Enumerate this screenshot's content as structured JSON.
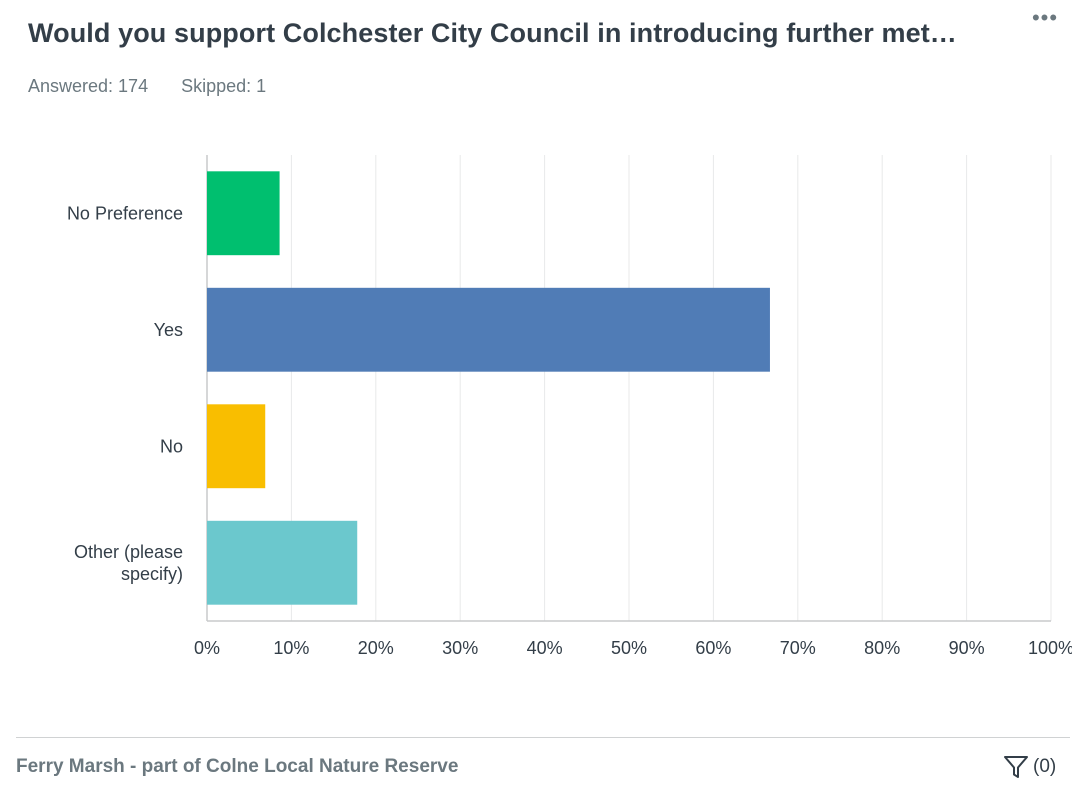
{
  "header": {
    "question_title": "Would you support Colchester City Council in introducing further met…",
    "more_glyph": "•••"
  },
  "stats": {
    "answered": "Answered: 174",
    "skipped": "Skipped: 1"
  },
  "chart_data": {
    "type": "bar",
    "orientation": "horizontal",
    "categories": [
      [
        "No Preference"
      ],
      [
        "Yes"
      ],
      [
        "No"
      ],
      [
        "Other (please",
        "specify)"
      ]
    ],
    "values": [
      8.6,
      66.7,
      6.9,
      17.8
    ],
    "colors": [
      "#00bf6f",
      "#507cb6",
      "#f9be00",
      "#6bc8cd"
    ],
    "x_ticks": [
      "0%",
      "10%",
      "20%",
      "30%",
      "40%",
      "50%",
      "60%",
      "70%",
      "80%",
      "90%",
      "100%"
    ],
    "xlim": [
      0,
      100
    ],
    "grid": true
  },
  "footer": {
    "section_title": "Ferry Marsh - part of Colne Local Nature Reserve",
    "filter_count": "(0)",
    "filter_icon": "filter-icon"
  }
}
